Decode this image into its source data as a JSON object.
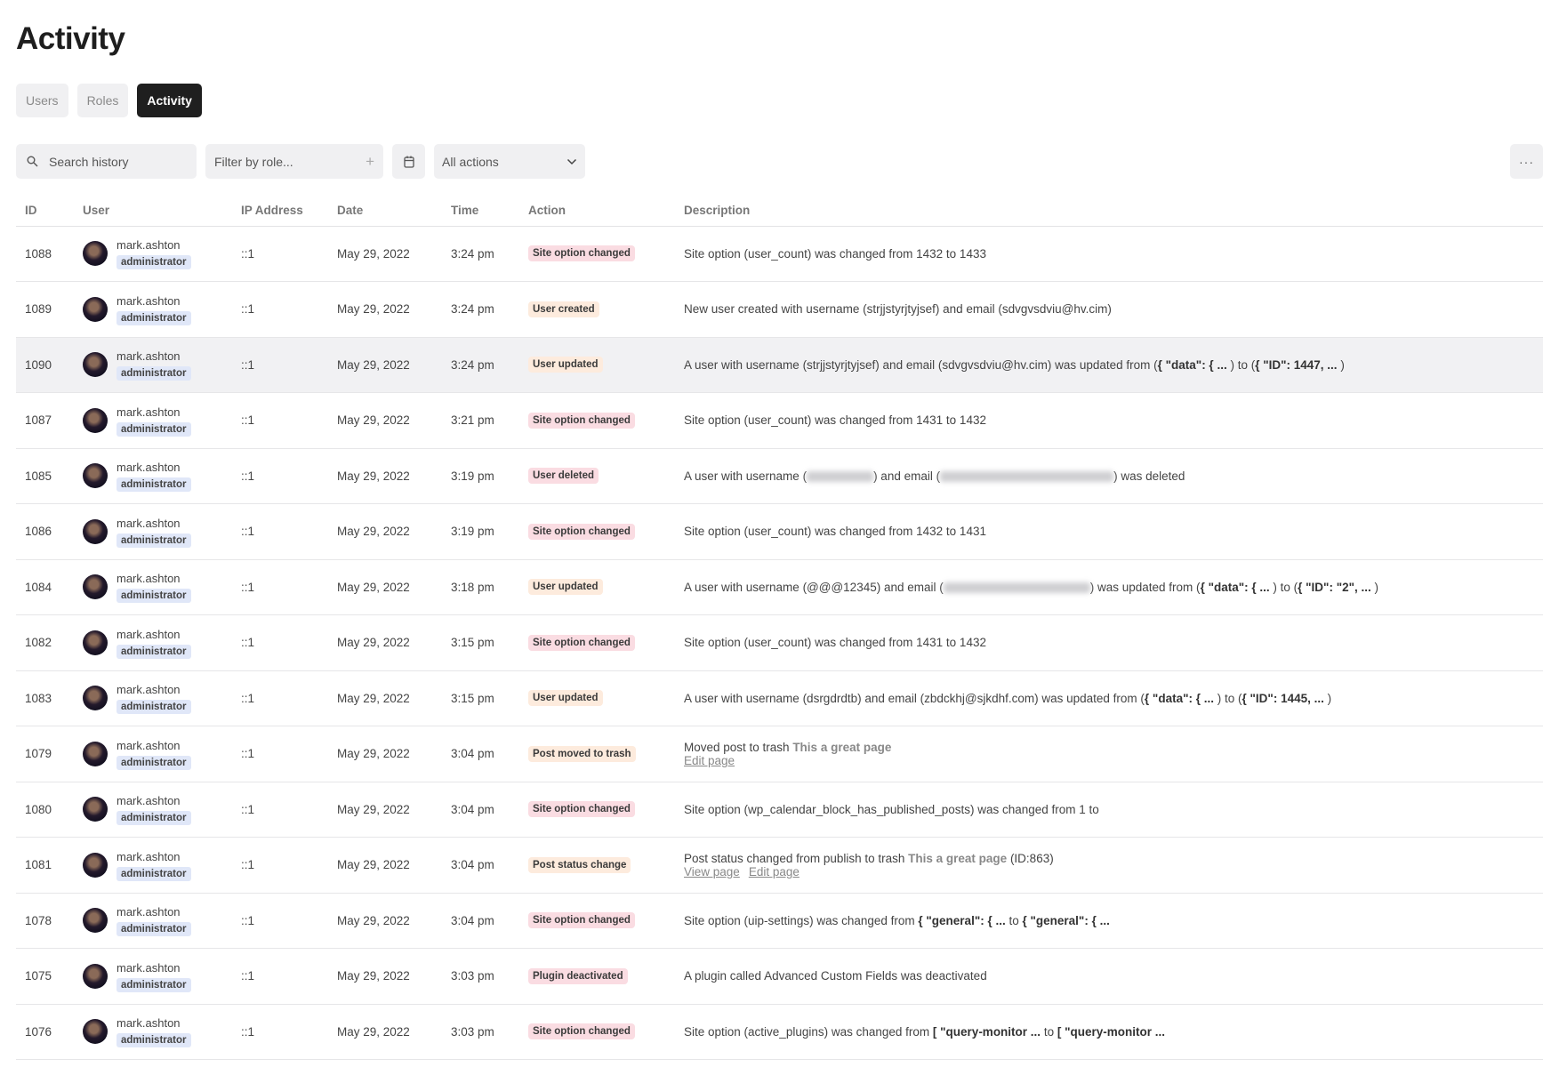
{
  "page": {
    "title": "Activity"
  },
  "tabs": [
    {
      "label": "Users",
      "active": false
    },
    {
      "label": "Roles",
      "active": false
    },
    {
      "label": "Activity",
      "active": true
    }
  ],
  "toolbar": {
    "search_placeholder": "Search history",
    "filter_placeholder": "Filter by role...",
    "actions_select": "All actions",
    "more_label": "···"
  },
  "columns": [
    "ID",
    "User",
    "IP Address",
    "Date",
    "Time",
    "Action",
    "Description"
  ],
  "colors": {
    "badge_pink": "#fadce2",
    "badge_peach": "#fdebdd",
    "role_bg": "#e0e7f8",
    "active_tab": "#1f1f1f"
  },
  "rows": [
    {
      "id": "1088",
      "user": "mark.ashton",
      "role": "administrator",
      "ip": "::1",
      "date": "May 29, 2022",
      "time": "3:24 pm",
      "action": "Site option changed",
      "tone": "pink",
      "desc": [
        {
          "t": "Site option (user_count) was changed from 1432 to 1433"
        }
      ]
    },
    {
      "id": "1089",
      "user": "mark.ashton",
      "role": "administrator",
      "ip": "::1",
      "date": "May 29, 2022",
      "time": "3:24 pm",
      "action": "User created",
      "tone": "peach",
      "desc": [
        {
          "t": "New user created with username (strjjstyrjtyjsef) and email (sdvgvsdviu@hv.cim)"
        }
      ]
    },
    {
      "id": "1090",
      "user": "mark.ashton",
      "role": "administrator",
      "ip": "::1",
      "date": "May 29, 2022",
      "time": "3:24 pm",
      "action": "User updated",
      "tone": "peach",
      "highlighted": true,
      "desc": [
        {
          "t": "A user with username (strjjstyrjtyjsef) and email (sdvgvsdviu@hv.cim) was updated from ("
        },
        {
          "t": "{ \"data\": { ... ",
          "b": true
        },
        {
          "t": ") to ("
        },
        {
          "t": "{ \"ID\": 1447, ... ",
          "b": true
        },
        {
          "t": ")"
        }
      ]
    },
    {
      "id": "1087",
      "user": "mark.ashton",
      "role": "administrator",
      "ip": "::1",
      "date": "May 29, 2022",
      "time": "3:21 pm",
      "action": "Site option changed",
      "tone": "pink",
      "desc": [
        {
          "t": "Site option (user_count) was changed from 1431 to 1432"
        }
      ]
    },
    {
      "id": "1085",
      "user": "mark.ashton",
      "role": "administrator",
      "ip": "::1",
      "date": "May 29, 2022",
      "time": "3:19 pm",
      "action": "User deleted",
      "tone": "pink",
      "desc": [
        {
          "t": "A user with username ("
        },
        {
          "blur": 75
        },
        {
          "t": ") and email ("
        },
        {
          "blur": 195
        },
        {
          "t": ") was deleted"
        }
      ]
    },
    {
      "id": "1086",
      "user": "mark.ashton",
      "role": "administrator",
      "ip": "::1",
      "date": "May 29, 2022",
      "time": "3:19 pm",
      "action": "Site option changed",
      "tone": "pink",
      "desc": [
        {
          "t": "Site option (user_count) was changed from 1432 to 1431"
        }
      ]
    },
    {
      "id": "1084",
      "user": "mark.ashton",
      "role": "administrator",
      "ip": "::1",
      "date": "May 29, 2022",
      "time": "3:18 pm",
      "action": "User updated",
      "tone": "peach",
      "desc": [
        {
          "t": "A user with username (@@@12345) and email ("
        },
        {
          "blur": 165
        },
        {
          "t": ") was updated from ("
        },
        {
          "t": "{ \"data\": { ... ",
          "b": true
        },
        {
          "t": ") to ("
        },
        {
          "t": "{ \"ID\": \"2\", ... ",
          "b": true
        },
        {
          "t": ")"
        }
      ]
    },
    {
      "id": "1082",
      "user": "mark.ashton",
      "role": "administrator",
      "ip": "::1",
      "date": "May 29, 2022",
      "time": "3:15 pm",
      "action": "Site option changed",
      "tone": "pink",
      "desc": [
        {
          "t": "Site option (user_count) was changed from 1431 to 1432"
        }
      ]
    },
    {
      "id": "1083",
      "user": "mark.ashton",
      "role": "administrator",
      "ip": "::1",
      "date": "May 29, 2022",
      "time": "3:15 pm",
      "action": "User updated",
      "tone": "peach",
      "desc": [
        {
          "t": "A user with username (dsrgdrdtb) and email (zbdckhj@sjkdhf.com) was updated from ("
        },
        {
          "t": "{ \"data\": { ... ",
          "b": true
        },
        {
          "t": ") to ("
        },
        {
          "t": "{ \"ID\": 1445, ... ",
          "b": true
        },
        {
          "t": ")"
        }
      ]
    },
    {
      "id": "1079",
      "user": "mark.ashton",
      "role": "administrator",
      "ip": "::1",
      "date": "May 29, 2022",
      "time": "3:04 pm",
      "action": "Post moved to trash",
      "tone": "peach",
      "desc": [
        {
          "t": "Moved post to trash "
        },
        {
          "t": "This a great page",
          "m": true
        }
      ],
      "links": [
        "Edit page"
      ]
    },
    {
      "id": "1080",
      "user": "mark.ashton",
      "role": "administrator",
      "ip": "::1",
      "date": "May 29, 2022",
      "time": "3:04 pm",
      "action": "Site option changed",
      "tone": "pink",
      "desc": [
        {
          "t": "Site option (wp_calendar_block_has_published_posts) was changed from 1 to"
        }
      ]
    },
    {
      "id": "1081",
      "user": "mark.ashton",
      "role": "administrator",
      "ip": "::1",
      "date": "May 29, 2022",
      "time": "3:04 pm",
      "action": "Post status change",
      "tone": "peach",
      "desc": [
        {
          "t": "Post status changed from publish to trash "
        },
        {
          "t": "This a great page",
          "m": true
        },
        {
          "t": " (ID:863)"
        }
      ],
      "links": [
        "View page",
        "Edit page"
      ]
    },
    {
      "id": "1078",
      "user": "mark.ashton",
      "role": "administrator",
      "ip": "::1",
      "date": "May 29, 2022",
      "time": "3:04 pm",
      "action": "Site option changed",
      "tone": "pink",
      "desc": [
        {
          "t": "Site option (uip-settings) was changed from "
        },
        {
          "t": "{ \"general\": { ...",
          "b": true
        },
        {
          "t": " to "
        },
        {
          "t": "{ \"general\": { ...",
          "b": true
        }
      ]
    },
    {
      "id": "1075",
      "user": "mark.ashton",
      "role": "administrator",
      "ip": "::1",
      "date": "May 29, 2022",
      "time": "3:03 pm",
      "action": "Plugin deactivated",
      "tone": "pink",
      "desc": [
        {
          "t": "A plugin called Advanced Custom Fields was deactivated"
        }
      ]
    },
    {
      "id": "1076",
      "user": "mark.ashton",
      "role": "administrator",
      "ip": "::1",
      "date": "May 29, 2022",
      "time": "3:03 pm",
      "action": "Site option changed",
      "tone": "pink",
      "desc": [
        {
          "t": "Site option (active_plugins) was changed from "
        },
        {
          "t": "[ \"query-monitor ...",
          "b": true
        },
        {
          "t": " to "
        },
        {
          "t": "[ \"query-monitor ...",
          "b": true
        }
      ]
    }
  ]
}
